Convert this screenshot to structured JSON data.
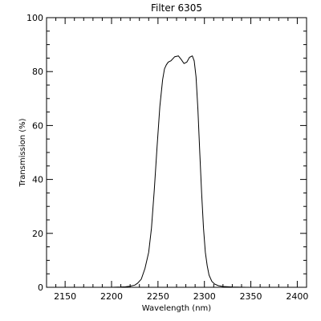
{
  "chart_data": {
    "type": "line",
    "title": "Filter 6305",
    "xlabel": "Wavelength (nm)",
    "ylabel": "Transmission (%)",
    "xlim": [
      2130,
      2410
    ],
    "ylim": [
      0,
      100
    ],
    "x_ticks": [
      2150,
      2200,
      2250,
      2300,
      2350,
      2400
    ],
    "y_ticks": [
      0,
      20,
      40,
      60,
      80,
      100
    ],
    "grid": false,
    "series": [
      {
        "x": [
          2200,
          2210,
          2215,
          2220,
          2225,
          2228,
          2232,
          2236,
          2240,
          2243,
          2246,
          2249,
          2252,
          2255,
          2257,
          2259,
          2261,
          2264,
          2268,
          2272,
          2275,
          2278,
          2281,
          2284,
          2287,
          2289,
          2291,
          2293,
          2295,
          2297,
          2299,
          2301,
          2303,
          2305,
          2308,
          2311,
          2315,
          2320,
          2330,
          2345
        ],
        "y": [
          0,
          0.1,
          0.2,
          0.4,
          0.8,
          1.5,
          3,
          7,
          13,
          22,
          36,
          52,
          67,
          77,
          81,
          82.5,
          83.5,
          84,
          85.5,
          85.8,
          84.5,
          83,
          83.5,
          85.3,
          85.8,
          84,
          78,
          66,
          50,
          35,
          22,
          13,
          8,
          4.5,
          2.2,
          1.2,
          0.6,
          0.3,
          0.1,
          0
        ]
      }
    ]
  }
}
